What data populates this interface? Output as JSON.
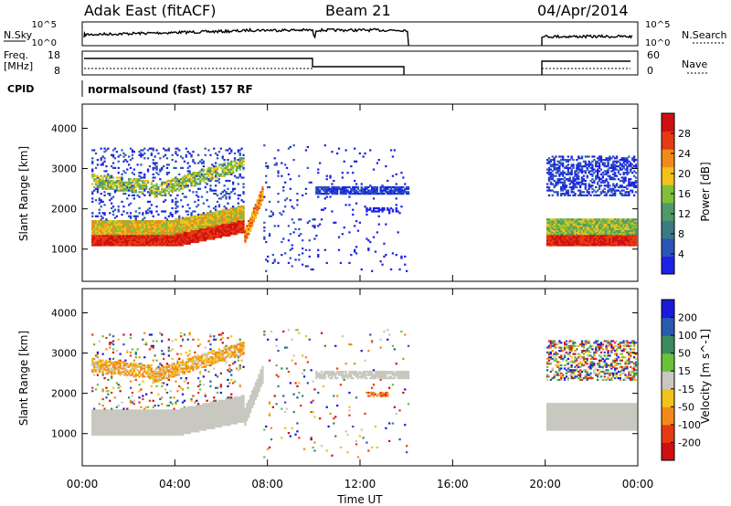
{
  "header": {
    "station": "Adak East (fitACF)",
    "beam": "Beam 21",
    "date": "04/Apr/2014"
  },
  "strips": {
    "nsky_label": "N.Sky",
    "nsky_ticks": [
      "10^5",
      "10^0"
    ],
    "nsearch_label": "N.Search",
    "nsearch_ticks": [
      "10^5",
      "10^0"
    ],
    "freq_label_1": "Freq.",
    "freq_label_2": "[MHz]",
    "freq_ticks": [
      "18",
      "8"
    ],
    "nave_label": "Nave",
    "nave_ticks": [
      "60",
      "0"
    ],
    "cpid_label": "CPID",
    "cpid_text": "normalsound (fast) 157 RF"
  },
  "chart_data": [
    {
      "type": "heatmap",
      "panel": "power",
      "ylabel": "Slant Range [km]",
      "yticks": [
        "1000",
        "2000",
        "3000",
        "4000"
      ],
      "ylim": [
        200,
        4600
      ],
      "xlim_hours": [
        0,
        24
      ],
      "colorbar_label": "Power [dB]",
      "colorbar_ticks": [
        "4",
        "8",
        "12",
        "16",
        "20",
        "24",
        "28"
      ],
      "colors": [
        "#1e22e6",
        "#2b55b8",
        "#3c7a86",
        "#4f9a6a",
        "#7fbf3a",
        "#f2c21a",
        "#f28a1a",
        "#e63a14",
        "#d01010"
      ],
      "data_intervals_hours": [
        [
          0.4,
          14.1
        ],
        [
          20.0,
          23.9
        ]
      ]
    },
    {
      "type": "heatmap",
      "panel": "velocity",
      "ylabel": "Slant Range [km]",
      "yticks": [
        "1000",
        "2000",
        "3000",
        "4000"
      ],
      "ylim": [
        200,
        4600
      ],
      "xlim_hours": [
        0,
        24
      ],
      "colorbar_label": "Velocity [m s^-1]",
      "colorbar_ticks": [
        "200",
        "100",
        "50",
        "15",
        "-15",
        "-50",
        "-100",
        "-200"
      ],
      "colors": [
        "#1a1ad8",
        "#2a5ab0",
        "#3d8a5c",
        "#6ac13a",
        "#c8c8c0",
        "#f2c21a",
        "#f28a1a",
        "#e63a14",
        "#d01010"
      ],
      "data_intervals_hours": [
        [
          0.4,
          14.1
        ],
        [
          20.0,
          23.9
        ]
      ]
    }
  ],
  "xaxis": {
    "ticks": [
      "00:00",
      "04:00",
      "08:00",
      "12:00",
      "16:00",
      "20:00",
      "00:00"
    ],
    "label": "Time UT"
  }
}
